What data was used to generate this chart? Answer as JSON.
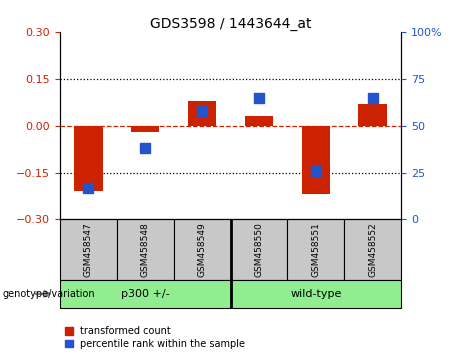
{
  "title": "GDS3598 / 1443644_at",
  "samples": [
    "GSM458547",
    "GSM458548",
    "GSM458549",
    "GSM458550",
    "GSM458551",
    "GSM458552"
  ],
  "red_values": [
    -0.21,
    -0.02,
    0.08,
    0.03,
    -0.22,
    0.07
  ],
  "blue_values": [
    17,
    38,
    58,
    65,
    26,
    65
  ],
  "group_divider": 3,
  "ylim_left": [
    -0.3,
    0.3
  ],
  "ylim_right": [
    0,
    100
  ],
  "yticks_left": [
    -0.3,
    -0.15,
    0,
    0.15,
    0.3
  ],
  "yticks_right": [
    0,
    25,
    50,
    75,
    100
  ],
  "red_color": "#CC2200",
  "blue_color": "#2255CC",
  "dotted_line_values": [
    -0.15,
    0.15
  ],
  "bar_width": 0.5,
  "blue_marker_size": 42,
  "legend_items": [
    "transformed count",
    "percentile rank within the sample"
  ],
  "genotype_label": "genotype/variation",
  "group_labels": [
    "p300 +/-",
    "wild-type"
  ],
  "group_bg": "#90EE90",
  "sample_bg": "#C8C8C8"
}
